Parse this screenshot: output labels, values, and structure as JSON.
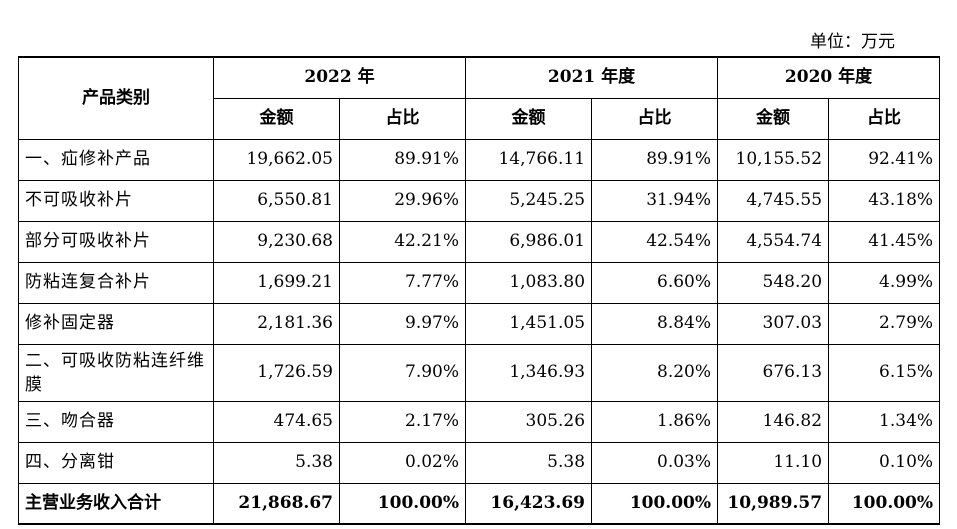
{
  "unit_label": "单位：万元",
  "headers": {
    "category": "产品类别",
    "years": [
      "2022 年",
      "2021 年度",
      "2020 年度"
    ],
    "amount": "金额",
    "ratio": "占比"
  },
  "rows": [
    {
      "category": "一、疝修补产品",
      "cells": [
        "19,662.05",
        "89.91%",
        "14,766.11",
        "89.91%",
        "10,155.52",
        "92.41%"
      ]
    },
    {
      "category": "不可吸收补片",
      "cells": [
        "6,550.81",
        "29.96%",
        "5,245.25",
        "31.94%",
        "4,745.55",
        "43.18%"
      ]
    },
    {
      "category": "部分可吸收补片",
      "cells": [
        "9,230.68",
        "42.21%",
        "6,986.01",
        "42.54%",
        "4,554.74",
        "41.45%"
      ]
    },
    {
      "category": "防粘连复合补片",
      "cells": [
        "1,699.21",
        "7.77%",
        "1,083.80",
        "6.60%",
        "548.20",
        "4.99%"
      ]
    },
    {
      "category": "修补固定器",
      "cells": [
        "2,181.36",
        "9.97%",
        "1,451.05",
        "8.84%",
        "307.03",
        "2.79%"
      ]
    },
    {
      "category": "二、可吸收防粘连纤维膜",
      "cells": [
        "1,726.59",
        "7.90%",
        "1,346.93",
        "8.20%",
        "676.13",
        "6.15%"
      ]
    },
    {
      "category": "三、吻合器",
      "cells": [
        "474.65",
        "2.17%",
        "305.26",
        "1.86%",
        "146.82",
        "1.34%"
      ]
    },
    {
      "category": "四、分离钳",
      "cells": [
        "5.38",
        "0.02%",
        "5.38",
        "0.03%",
        "11.10",
        "0.10%"
      ]
    }
  ],
  "total": {
    "category": "主营业务收入合计",
    "cells": [
      "21,868.67",
      "100.00%",
      "16,423.69",
      "100.00%",
      "10,989.57",
      "100.00%"
    ]
  }
}
